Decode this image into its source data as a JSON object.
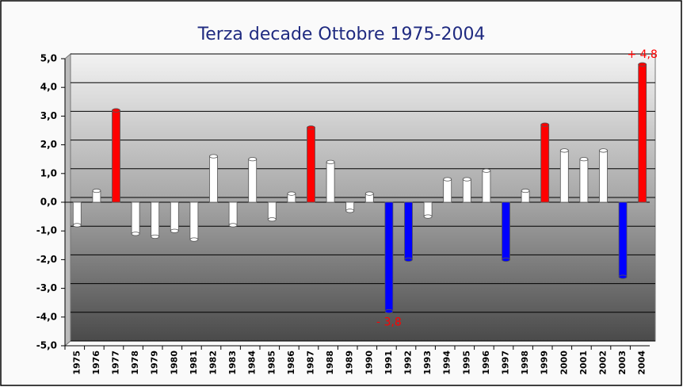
{
  "chart_data": {
    "type": "bar",
    "title": "Terza decade Ottobre 1975-2004",
    "categories": [
      "1975",
      "1976",
      "1977",
      "1978",
      "1979",
      "1980",
      "1981",
      "1982",
      "1983",
      "1984",
      "1985",
      "1986",
      "1987",
      "1988",
      "1989",
      "1990",
      "1991",
      "1992",
      "1993",
      "1994",
      "1995",
      "1996",
      "1997",
      "1998",
      "1999",
      "2000",
      "2001",
      "2002",
      "2003",
      "2004"
    ],
    "values": [
      -0.8,
      0.4,
      3.2,
      -1.1,
      -1.2,
      -1.0,
      -1.3,
      1.6,
      -0.8,
      1.5,
      -0.6,
      0.3,
      2.6,
      1.4,
      -0.3,
      0.3,
      -3.8,
      -2.0,
      -0.5,
      0.8,
      0.8,
      1.1,
      -2.0,
      0.4,
      2.7,
      1.8,
      1.5,
      1.8,
      -2.6,
      4.8
    ],
    "value_labels": [
      null,
      null,
      null,
      null,
      null,
      null,
      null,
      null,
      null,
      null,
      null,
      null,
      null,
      null,
      null,
      null,
      "- 3,8",
      null,
      null,
      null,
      null,
      null,
      null,
      null,
      null,
      null,
      null,
      null,
      null,
      "+ 4,8"
    ],
    "colors": [
      "#ffffff",
      "#ffffff",
      "#ff0000",
      "#ffffff",
      "#ffffff",
      "#ffffff",
      "#ffffff",
      "#ffffff",
      "#ffffff",
      "#ffffff",
      "#ffffff",
      "#ffffff",
      "#ff0000",
      "#ffffff",
      "#ffffff",
      "#ffffff",
      "#0000ff",
      "#0000ff",
      "#ffffff",
      "#ffffff",
      "#ffffff",
      "#ffffff",
      "#0000ff",
      "#ffffff",
      "#ff0000",
      "#ffffff",
      "#ffffff",
      "#ffffff",
      "#0000ff",
      "#ff0000"
    ],
    "value_label_color": "#ff0000",
    "ylim": [
      -5,
      5
    ],
    "yticks": [
      {
        "value": -5,
        "label": "-5,0"
      },
      {
        "value": -4,
        "label": "-4,0"
      },
      {
        "value": -3,
        "label": "-3,0"
      },
      {
        "value": -2,
        "label": "-2,0"
      },
      {
        "value": -1,
        "label": "-1,0"
      },
      {
        "value": 0,
        "label": "0,0"
      },
      {
        "value": 1,
        "label": "1,0"
      },
      {
        "value": 2,
        "label": "2,0"
      },
      {
        "value": 3,
        "label": "3,0"
      },
      {
        "value": 4,
        "label": "4,0"
      },
      {
        "value": 5,
        "label": "5,0"
      }
    ],
    "grid": true
  }
}
